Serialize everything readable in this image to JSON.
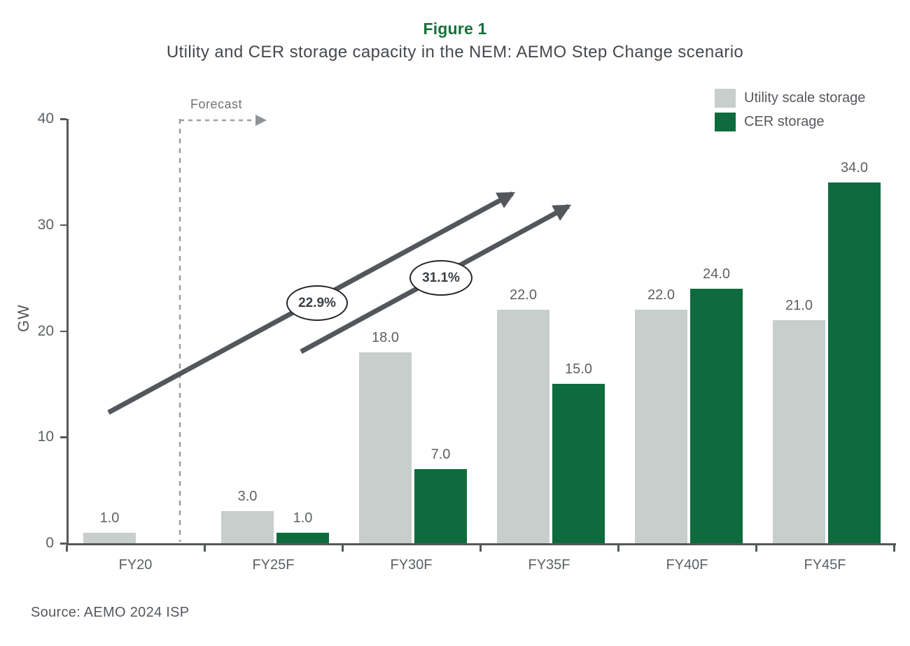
{
  "header": {
    "figure_label": "Figure 1",
    "title": "Utility and CER storage capacity in the NEM: AEMO Step Change scenario"
  },
  "legend": {
    "items": [
      {
        "label": "Utility scale storage",
        "color": "#C7CECC"
      },
      {
        "label": "CER storage",
        "color": "#0E6B3D"
      }
    ]
  },
  "annotations": {
    "forecast_label": "Forecast",
    "growth_badges": [
      {
        "label": "22.9%"
      },
      {
        "label": "31.1%"
      }
    ]
  },
  "chart_data": {
    "type": "bar",
    "title": "Utility and CER storage capacity in the NEM: AEMO Step Change scenario",
    "categories": [
      "FY20",
      "FY25F",
      "FY30F",
      "FY35F",
      "FY40F",
      "FY45F"
    ],
    "series": [
      {
        "name": "Utility scale storage",
        "color": "#C7CECC",
        "values": [
          1.0,
          3.0,
          18.0,
          22.0,
          22.0,
          21.0
        ]
      },
      {
        "name": "CER storage",
        "color": "#0E6B3D",
        "values": [
          null,
          1.0,
          7.0,
          15.0,
          24.0,
          34.0
        ]
      }
    ],
    "xlabel": "",
    "ylabel": "GW",
    "ylim": [
      0,
      40
    ],
    "yticks": [
      0,
      10,
      20,
      30,
      40
    ],
    "grid": false,
    "legend_position": "top-right",
    "value_labels": "one-decimal",
    "annotation_labels": {
      "forecast": "Forecast",
      "cagr_utility": "22.9%",
      "cagr_cer": "31.1%"
    }
  },
  "footer": {
    "source": "Source: AEMO 2024 ISP"
  }
}
